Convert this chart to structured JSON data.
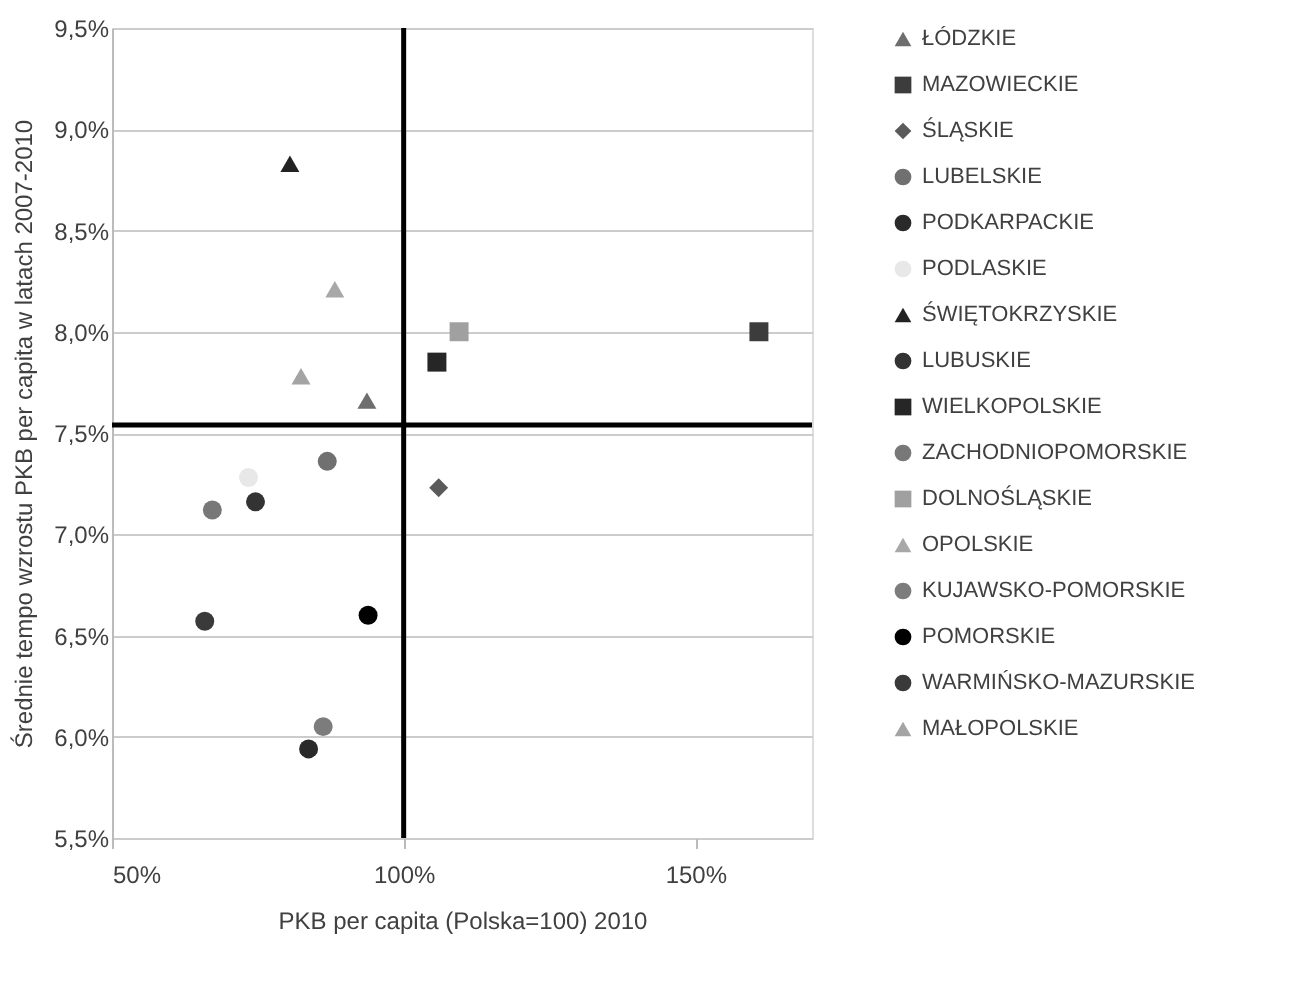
{
  "chart_data": {
    "type": "scatter",
    "xlabel": "PKB per capita (Polska=100)  2010",
    "ylabel": "Średnie tempo wzrostu PKB per capita w latach 2007-2010",
    "xlim": [
      50,
      170
    ],
    "ylim": [
      5.5,
      9.5
    ],
    "xticks": [
      {
        "value": 50,
        "label": "50%"
      },
      {
        "value": 100,
        "label": "100%"
      },
      {
        "value": 150,
        "label": "150%"
      }
    ],
    "yticks": [
      {
        "value": 5.5,
        "label": "5,5%"
      },
      {
        "value": 6,
        "label": "6,0%"
      },
      {
        "value": 6.5,
        "label": "6,5%"
      },
      {
        "value": 7,
        "label": "7,0%"
      },
      {
        "value": 7.5,
        "label": "7,5%"
      },
      {
        "value": 8,
        "label": "8,0%"
      },
      {
        "value": 8.5,
        "label": "8,5%"
      },
      {
        "value": 9,
        "label": "9,0%"
      },
      {
        "value": 9.5,
        "label": "9,5%"
      }
    ],
    "grid": "y",
    "legend": "right",
    "series": [
      {
        "name": "ŁÓDZKIE",
        "color": "#6e6e6e",
        "marker": "triangle",
        "x": [
          93.7
        ],
        "values": [
          7.66
        ]
      },
      {
        "name": "MAZOWIECKIE",
        "color": "#3c3c3c",
        "marker": "square",
        "x": [
          160.9
        ],
        "values": [
          8.0
        ]
      },
      {
        "name": "ŚLĄSKIE",
        "color": "#5a5a5a",
        "marker": "diamond",
        "x": [
          106
        ],
        "values": [
          7.23
        ]
      },
      {
        "name": "LUBELSKIE",
        "color": "#707070",
        "marker": "circle",
        "x": [
          86.9
        ],
        "values": [
          7.36
        ]
      },
      {
        "name": "PODKARPACKIE",
        "color": "#2a2a2a",
        "marker": "circle",
        "x": [
          83.7
        ],
        "values": [
          5.94
        ]
      },
      {
        "name": "PODLASKIE",
        "color": "#e8e8e8",
        "marker": "circle",
        "x": [
          73.4
        ],
        "values": [
          7.28
        ]
      },
      {
        "name": "ŚWIĘTOKRZYSKIE",
        "color": "#222222",
        "marker": "triangle",
        "x": [
          80.5
        ],
        "values": [
          8.83
        ]
      },
      {
        "name": "LUBUSKIE",
        "color": "#333333",
        "marker": "circle",
        "x": [
          74.6
        ],
        "values": [
          7.16
        ]
      },
      {
        "name": "WIELKOPOLSKIE",
        "color": "#262626",
        "marker": "square",
        "x": [
          105.7
        ],
        "values": [
          7.85
        ]
      },
      {
        "name": "ZACHODNIOPOMORSKIE",
        "color": "#787878",
        "marker": "circle",
        "x": [
          67.2
        ],
        "values": [
          7.12
        ]
      },
      {
        "name": "DOLNOŚLĄSKIE",
        "color": "#a0a0a0",
        "marker": "square",
        "x": [
          109.5
        ],
        "values": [
          8.0
        ]
      },
      {
        "name": "OPOLSKIE",
        "color": "#a8a8a8",
        "marker": "triangle",
        "x": [
          88.2
        ],
        "values": [
          8.21
        ]
      },
      {
        "name": "KUJAWSKO-POMORSKIE",
        "color": "#7c7c7c",
        "marker": "circle",
        "x": [
          86.2
        ],
        "values": [
          6.05
        ]
      },
      {
        "name": "POMORSKIE",
        "color": "#000000",
        "marker": "circle",
        "x": [
          93.9
        ],
        "values": [
          6.6
        ]
      },
      {
        "name": "WARMIŃSKO-MAZURSKIE",
        "color": "#3a3a3a",
        "marker": "circle",
        "x": [
          65.9
        ],
        "values": [
          6.57
        ]
      },
      {
        "name": "MAŁOPOLSKIE",
        "color": "#a4a4a4",
        "marker": "triangle",
        "x": [
          82.4
        ],
        "values": [
          7.78
        ]
      }
    ],
    "ref_lines": [
      {
        "axis": "x",
        "value": 100,
        "color": "#000000"
      },
      {
        "axis": "y",
        "value": 7.54,
        "color": "#000000"
      }
    ]
  }
}
